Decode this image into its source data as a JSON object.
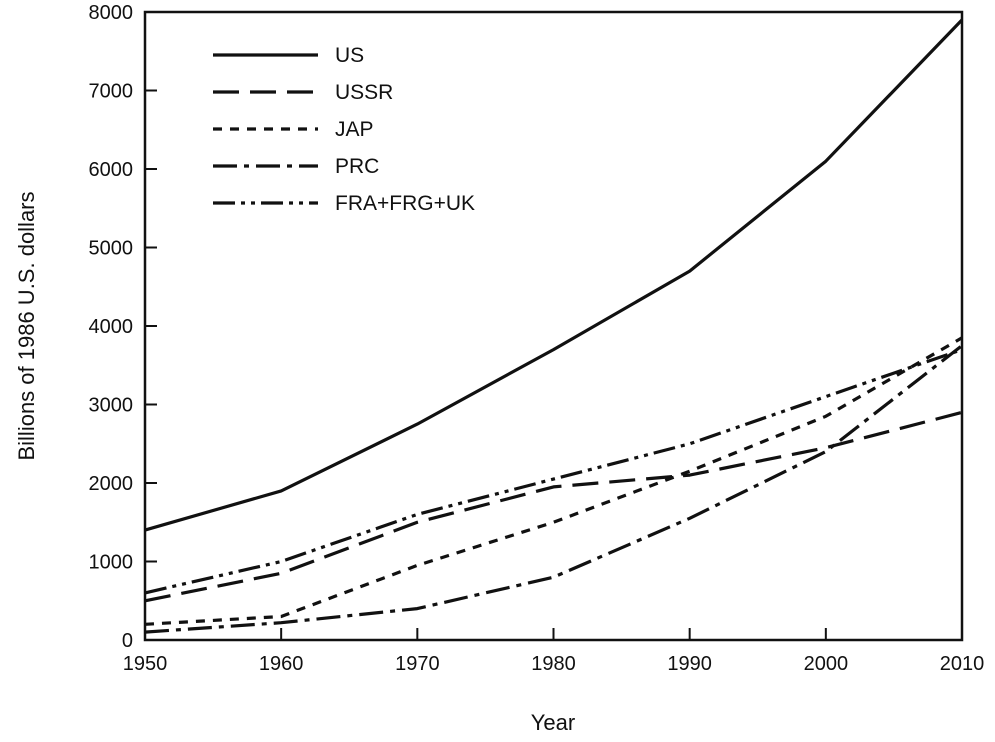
{
  "chart_data": {
    "type": "line",
    "title": "",
    "xlabel": "Year",
    "ylabel": "Billions of 1986 U.S. dollars",
    "x": [
      1950,
      1960,
      1970,
      1980,
      1990,
      2000,
      2010
    ],
    "xlim": [
      1950,
      2010
    ],
    "ylim": [
      0,
      8000
    ],
    "xticks": [
      "1950",
      "1960",
      "1970",
      "1980",
      "1990",
      "2000",
      "2010"
    ],
    "yticks": [
      "0",
      "1000",
      "2000",
      "3000",
      "4000",
      "5000",
      "6000",
      "7000",
      "8000"
    ],
    "grid": false,
    "legend_position": "top-left",
    "series": [
      {
        "name": "US",
        "style": "solid",
        "values": [
          1400,
          1900,
          2750,
          3700,
          4700,
          6100,
          7900
        ]
      },
      {
        "name": "USSR",
        "style": "long-dash",
        "values": [
          500,
          850,
          1500,
          1950,
          2100,
          2450,
          2900
        ]
      },
      {
        "name": "JAP",
        "style": "short-dash",
        "values": [
          200,
          300,
          950,
          1500,
          2150,
          2850,
          3850
        ]
      },
      {
        "name": "PRC",
        "style": "dash-dot",
        "values": [
          100,
          220,
          400,
          800,
          1550,
          2400,
          3750
        ]
      },
      {
        "name": "FRA+FRG+UK",
        "style": "dash-dot-dot",
        "values": [
          600,
          1000,
          1600,
          2050,
          2500,
          3100,
          3700
        ]
      }
    ]
  }
}
